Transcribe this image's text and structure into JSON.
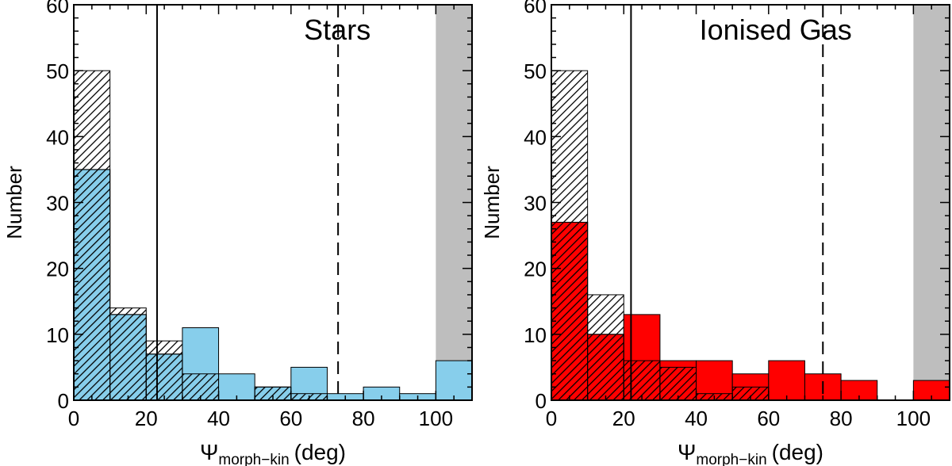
{
  "chart_data": [
    {
      "type": "bar",
      "title": "Stars",
      "xlabel_symbol": "Ψ",
      "xlabel_subscript": "morph−kin",
      "xlabel_unit": "(deg)",
      "ylabel": "Number",
      "xlim": [
        0,
        110
      ],
      "ylim": [
        0,
        60
      ],
      "xticks": [
        "0",
        "20",
        "40",
        "60",
        "80",
        "100"
      ],
      "yticks": [
        "0",
        "10",
        "20",
        "30",
        "40",
        "50",
        "60"
      ],
      "bin_edges": [
        0,
        10,
        20,
        30,
        40,
        50,
        60,
        70,
        80,
        90,
        100,
        110
      ],
      "series": [
        {
          "style": "hatched",
          "values": [
            50,
            14,
            9,
            4,
            0,
            2,
            1,
            0,
            0,
            0,
            0
          ]
        },
        {
          "style": "filled",
          "values": [
            35,
            13,
            7,
            11,
            4,
            2,
            5,
            1,
            2,
            1,
            6
          ]
        }
      ],
      "fill_color": "#87ceeb",
      "solid_line_x": 23,
      "dashed_line_x": 73,
      "shaded_region": [
        100,
        110
      ]
    },
    {
      "type": "bar",
      "title": "Ionised Gas",
      "xlabel_symbol": "Ψ",
      "xlabel_subscript": "morph−kin",
      "xlabel_unit": "(deg)",
      "ylabel": "Number",
      "xlim": [
        0,
        110
      ],
      "ylim": [
        0,
        60
      ],
      "xticks": [
        "0",
        "20",
        "40",
        "60",
        "80",
        "100"
      ],
      "yticks": [
        "0",
        "10",
        "20",
        "30",
        "40",
        "50",
        "60"
      ],
      "bin_edges": [
        0,
        10,
        20,
        30,
        40,
        50,
        60,
        70,
        80,
        90,
        100,
        110
      ],
      "series": [
        {
          "style": "hatched",
          "values": [
            50,
            16,
            6,
            5,
            1,
            2,
            0,
            0,
            0,
            0,
            0
          ]
        },
        {
          "style": "filled",
          "values": [
            27,
            10,
            13,
            6,
            6,
            4,
            6,
            4,
            3,
            0,
            3
          ]
        }
      ],
      "fill_color": "#ff0000",
      "solid_line_x": 22,
      "dashed_line_x": 75,
      "shaded_region": [
        100,
        110
      ]
    }
  ]
}
